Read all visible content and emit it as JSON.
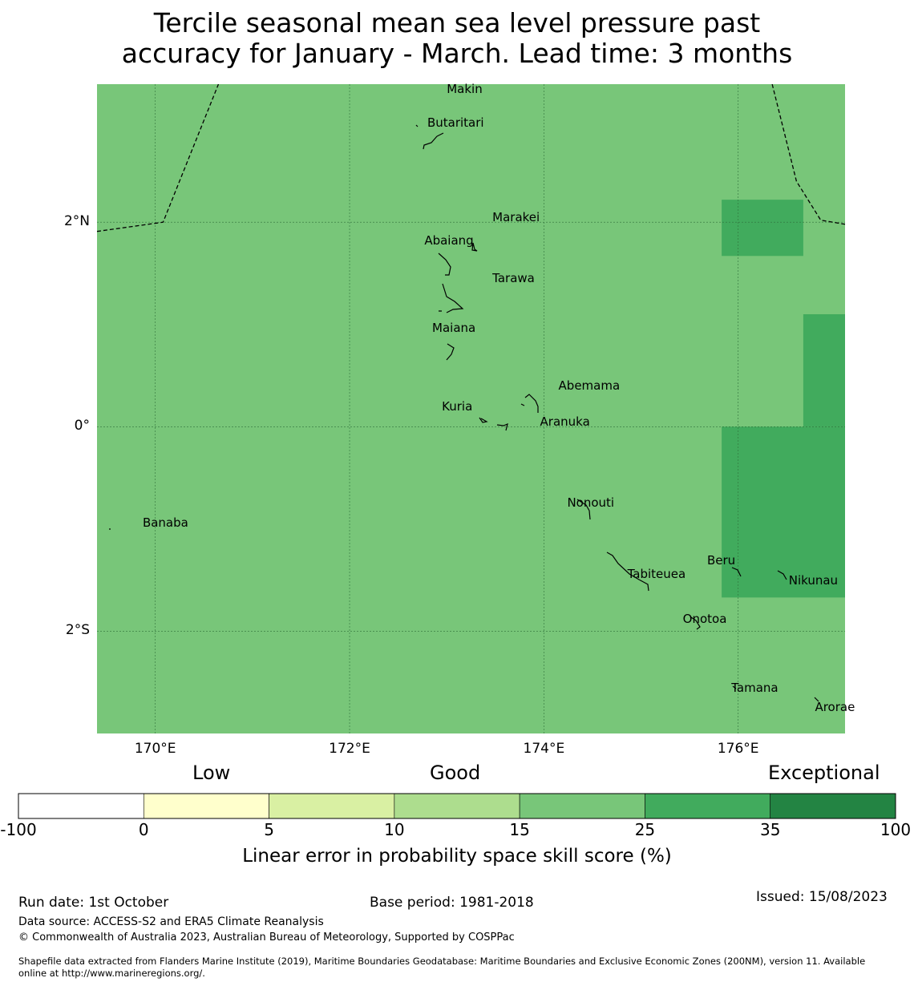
{
  "title_line1": "Tercile seasonal mean sea level pressure past",
  "title_line2": "accuracy for January - March. Lead time: 3 months",
  "map": {
    "lon_range": [
      169.4,
      177.1
    ],
    "lat_range": [
      -3.0,
      3.35
    ],
    "background_color": "#78c679",
    "lon_ticks": [
      {
        "value": 170,
        "label": "170°E"
      },
      {
        "value": 172,
        "label": "172°E"
      },
      {
        "value": 174,
        "label": "174°E"
      },
      {
        "value": 176,
        "label": "176°E"
      }
    ],
    "lat_ticks": [
      {
        "value": 2,
        "label": "2°N"
      },
      {
        "value": 0,
        "label": "0°"
      },
      {
        "value": -2,
        "label": "2°S"
      }
    ],
    "skill_cells": [
      {
        "lon": [
          175.83,
          176.67
        ],
        "lat": [
          1.67,
          2.22
        ],
        "color": "#41ab5d"
      },
      {
        "lon": [
          176.67,
          177.1
        ],
        "lat": [
          0.0,
          1.1
        ],
        "color": "#41ab5d"
      },
      {
        "lon": [
          175.83,
          177.1
        ],
        "lat": [
          -1.67,
          0.0
        ],
        "color": "#41ab5d"
      }
    ],
    "eez_boundaries": [
      [
        [
          169.4,
          1.91
        ],
        [
          170.08,
          2.0
        ],
        [
          170.65,
          3.35
        ]
      ],
      [
        [
          176.35,
          3.35
        ],
        [
          176.6,
          2.4
        ],
        [
          176.85,
          2.02
        ],
        [
          177.1,
          1.98
        ]
      ]
    ],
    "islands": [
      {
        "name": "Makin",
        "lon": 173.0,
        "lat": 3.3
      },
      {
        "name": "Butaritari",
        "lon": 172.8,
        "lat": 2.97
      },
      {
        "name": "Marakei",
        "lon": 173.47,
        "lat": 2.05
      },
      {
        "name": "Abaiang",
        "lon": 172.77,
        "lat": 1.82
      },
      {
        "name": "Tarawa",
        "lon": 173.47,
        "lat": 1.45
      },
      {
        "name": "Maiana",
        "lon": 172.85,
        "lat": 0.97
      },
      {
        "name": "Abemama",
        "lon": 174.15,
        "lat": 0.4
      },
      {
        "name": "Kuria",
        "lon": 172.95,
        "lat": 0.2
      },
      {
        "name": "Aranuka",
        "lon": 173.96,
        "lat": 0.05
      },
      {
        "name": "Banaba",
        "lon": 169.87,
        "lat": -0.94
      },
      {
        "name": "Nonouti",
        "lon": 174.24,
        "lat": -0.74
      },
      {
        "name": "Tabiteuea",
        "lon": 174.86,
        "lat": -1.44
      },
      {
        "name": "Beru",
        "lon": 175.68,
        "lat": -1.31
      },
      {
        "name": "Nikunau",
        "lon": 176.52,
        "lat": -1.5
      },
      {
        "name": "Onotoa",
        "lon": 175.43,
        "lat": -1.88
      },
      {
        "name": "Tamana",
        "lon": 175.93,
        "lat": -2.55
      },
      {
        "name": "Arorae",
        "lon": 176.79,
        "lat": -2.74
      }
    ]
  },
  "legend": {
    "category_low": "Low",
    "category_good": "Good",
    "category_exceptional": "Exceptional",
    "bins": [
      {
        "from": "-100",
        "color": "#ffffff"
      },
      {
        "from": "0",
        "color": "#ffffcc"
      },
      {
        "from": "5",
        "color": "#d9f0a3"
      },
      {
        "from": "10",
        "color": "#addd8e"
      },
      {
        "from": "15",
        "color": "#78c679"
      },
      {
        "from": "25",
        "color": "#41ab5d"
      },
      {
        "from": "35",
        "color": "#238443"
      }
    ],
    "last_tick": "100",
    "label": "Linear error in probability space skill score (%)"
  },
  "footer": {
    "run_date": "Run date: 1st October",
    "base_period": "Base period: 1981-2018",
    "issued": "Issued: 15/08/2023",
    "data_source": "Data source: ACCESS-S2 and ERA5 Climate Reanalysis",
    "copyright": "© Commonwealth of Australia 2023, Australian Bureau of Meteorology, Supported by COSPPac",
    "shapefile_line1": "Shapefile data extracted from Flanders Marine Institute (2019), Maritime Boundaries Geodatabase: Maritime Boundaries and Exclusive Economic Zones (200NM), version 11. Available",
    "shapefile_line2": "online at http://www.marineregions.org/."
  }
}
